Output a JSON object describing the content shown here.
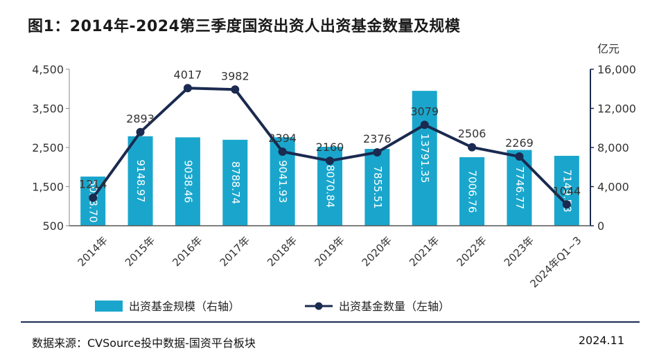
{
  "title": "图1：2014年-2024第三季度国资出资人出资基金数量及规模",
  "footer": {
    "source": "数据来源：CVSource投中数据-国资平台板块",
    "date": "2024.11"
  },
  "chart_data": {
    "type": "bar+line",
    "categories": [
      "2014年",
      "2015年",
      "2016年",
      "2017年",
      "2018年",
      "2019年",
      "2020年",
      "2021年",
      "2022年",
      "2023年",
      "2024年Q1~3"
    ],
    "series": [
      {
        "name": "出资基金规模（右轴）",
        "type": "bar",
        "axis": "right",
        "values": [
          5028.7,
          9148.97,
          9038.46,
          8788.74,
          9041.93,
          8070.84,
          7855.51,
          13791.35,
          7006.76,
          7746.77,
          7149.58
        ],
        "labels": [
          "5028.70",
          "9148.97",
          "9038.46",
          "8788.74",
          "9041.93",
          "8070.84",
          "7855.51",
          "13791.35",
          "7006.76",
          "7746.77",
          "7149.58"
        ],
        "color": "#1aa6cc"
      },
      {
        "name": "出资基金数量（左轴）",
        "type": "line",
        "axis": "left",
        "values": [
          1214,
          2893,
          4017,
          3982,
          2394,
          2160,
          2376,
          3079,
          2506,
          2269,
          1044
        ],
        "color": "#1a2a50"
      }
    ],
    "left_axis": {
      "range": [
        500,
        4500
      ],
      "ticks": [
        "500",
        "1,500",
        "2,500",
        "3,500",
        "4,500"
      ],
      "tick_values": [
        500,
        1500,
        2500,
        3500,
        4500
      ]
    },
    "right_axis": {
      "range": [
        0,
        16000
      ],
      "ticks": [
        "0",
        "4,000",
        "8,000",
        "12,000",
        "16,000"
      ],
      "tick_values": [
        0,
        4000,
        8000,
        12000,
        16000
      ],
      "unit": "亿元"
    },
    "legend_position": "bottom-left",
    "grid": false
  }
}
